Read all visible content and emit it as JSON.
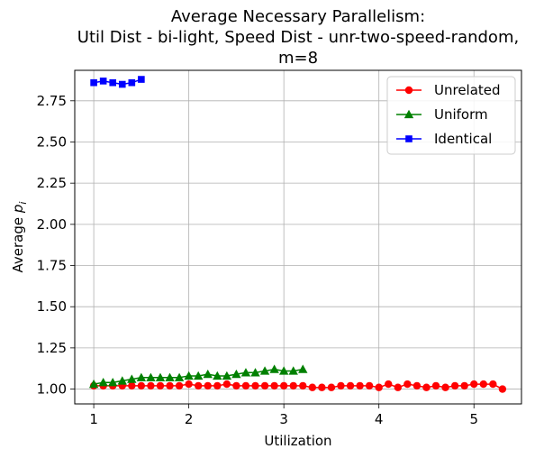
{
  "chart_data": {
    "type": "line",
    "title_lines": [
      "Average Necessary Parallelism:",
      "Util Dist - bi-light, Speed Dist - unr-two-speed-random,",
      "m=8"
    ],
    "xlabel": "Utilization",
    "ylabel_main": "Average ",
    "ylabel_var": "p",
    "ylabel_sub": "i",
    "xlim": [
      0.8,
      5.5
    ],
    "ylim": [
      0.91,
      2.935
    ],
    "xticks": [
      1,
      2,
      3,
      4,
      5
    ],
    "yticks": [
      1.0,
      1.25,
      1.5,
      1.75,
      2.0,
      2.25,
      2.5,
      2.75
    ],
    "ytick_labels": [
      "1.00",
      "1.25",
      "1.50",
      "1.75",
      "2.00",
      "2.25",
      "2.50",
      "2.75"
    ],
    "xtick_labels": [
      "1",
      "2",
      "3",
      "4",
      "5"
    ],
    "grid": true,
    "legend_position": "top-right",
    "series": [
      {
        "name": "Unrelated",
        "color": "#ff0000",
        "marker": "circle",
        "x": [
          1.0,
          1.1,
          1.2,
          1.3,
          1.4,
          1.5,
          1.6,
          1.7,
          1.8,
          1.9,
          2.0,
          2.1,
          2.2,
          2.3,
          2.4,
          2.5,
          2.6,
          2.7,
          2.8,
          2.9,
          3.0,
          3.1,
          3.2,
          3.3,
          3.4,
          3.5,
          3.6,
          3.7,
          3.8,
          3.9,
          4.0,
          4.1,
          4.2,
          4.3,
          4.4,
          4.5,
          4.6,
          4.7,
          4.8,
          4.9,
          5.0,
          5.1,
          5.2,
          5.3
        ],
        "values": [
          1.02,
          1.02,
          1.02,
          1.02,
          1.02,
          1.02,
          1.02,
          1.02,
          1.02,
          1.02,
          1.03,
          1.02,
          1.02,
          1.02,
          1.03,
          1.02,
          1.02,
          1.02,
          1.02,
          1.02,
          1.02,
          1.02,
          1.02,
          1.01,
          1.01,
          1.01,
          1.02,
          1.02,
          1.02,
          1.02,
          1.01,
          1.03,
          1.01,
          1.03,
          1.02,
          1.01,
          1.02,
          1.01,
          1.02,
          1.02,
          1.03,
          1.03,
          1.03,
          1.0
        ]
      },
      {
        "name": "Uniform",
        "color": "#008000",
        "marker": "triangle",
        "x": [
          1.0,
          1.1,
          1.2,
          1.3,
          1.4,
          1.5,
          1.6,
          1.7,
          1.8,
          1.9,
          2.0,
          2.1,
          2.2,
          2.3,
          2.4,
          2.5,
          2.6,
          2.7,
          2.8,
          2.9,
          3.0,
          3.1,
          3.2
        ],
        "values": [
          1.03,
          1.04,
          1.04,
          1.05,
          1.06,
          1.07,
          1.07,
          1.07,
          1.07,
          1.07,
          1.08,
          1.08,
          1.09,
          1.08,
          1.08,
          1.09,
          1.1,
          1.1,
          1.11,
          1.12,
          1.11,
          1.11,
          1.12
        ]
      },
      {
        "name": "Identical",
        "color": "#0000ff",
        "marker": "square",
        "x": [
          1.0,
          1.1,
          1.2,
          1.3,
          1.4,
          1.5
        ],
        "values": [
          2.86,
          2.87,
          2.86,
          2.85,
          2.86,
          2.88
        ]
      }
    ]
  }
}
